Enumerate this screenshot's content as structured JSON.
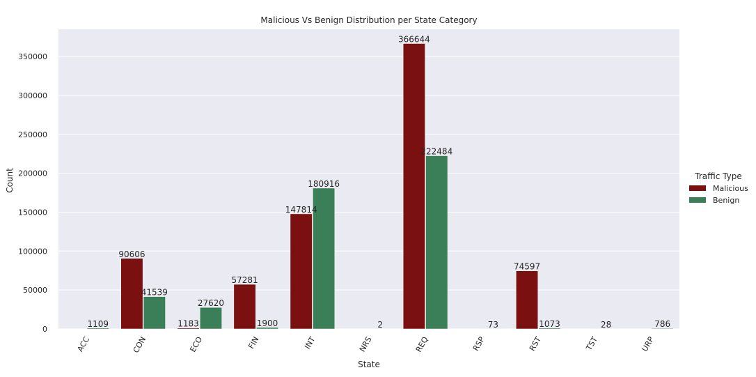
{
  "chart_data": {
    "type": "bar",
    "title": "Malicious Vs Benign Distribution per State Category",
    "xlabel": "State",
    "ylabel": "Count",
    "categories": [
      "ACC",
      "CON",
      "ECO",
      "FIN",
      "INT",
      "NRS",
      "REQ",
      "RSP",
      "RST",
      "TST",
      "URP"
    ],
    "series": [
      {
        "name": "Malicious",
        "color": "#7a1010",
        "values": [
          null,
          90606,
          1183,
          57281,
          147814,
          null,
          366644,
          null,
          74597,
          null,
          null
        ]
      },
      {
        "name": "Benign",
        "color": "#3a7f57",
        "values": [
          1109,
          41539,
          27620,
          1900,
          180916,
          2,
          222484,
          73,
          1073,
          28,
          786
        ]
      }
    ],
    "ylim": [
      0,
      385000
    ],
    "yticks": [
      0,
      50000,
      100000,
      150000,
      200000,
      250000,
      300000,
      350000
    ],
    "grid": true,
    "legend": {
      "title": "Traffic Type",
      "placement": "right"
    },
    "background": "#eaeaf2"
  }
}
